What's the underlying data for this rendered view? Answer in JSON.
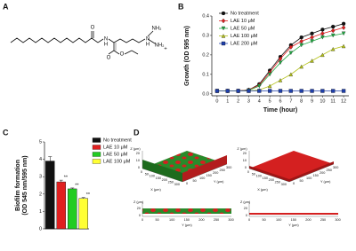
{
  "panels": {
    "A": {
      "label": "A",
      "atoms": [
        "O",
        "N",
        "H",
        "O",
        "O",
        "N",
        "H",
        "NH₂",
        "NH₂",
        "+"
      ]
    },
    "B": {
      "label": "B"
    },
    "C": {
      "label": "C"
    },
    "D": {
      "label": "D",
      "plots": [
        {
          "z_label": "Z (μm)",
          "x_label": "X (μm)",
          "y_label": "Y (μm)",
          "z_ticks": [
            "0",
            "10",
            "20"
          ],
          "x_ticks": [
            "0",
            "50",
            "100",
            "150",
            "200",
            "250",
            "300"
          ],
          "y_ticks": [
            "0",
            "50",
            "100",
            "150",
            "200",
            "250",
            "300"
          ],
          "strip_z_label": "Z (μm)",
          "strip_z_ticks": [
            "0",
            "20"
          ],
          "strip_y_label": "Y (μm)",
          "strip_y_ticks": [
            "0",
            "50",
            "100",
            "150",
            "200",
            "250",
            "300"
          ]
        },
        {
          "z_label": "Z (μm)",
          "x_label": "X (μm)",
          "y_label": "Y (μm)",
          "z_ticks": [
            "0",
            "10",
            "20"
          ],
          "x_ticks": [
            "0",
            "50",
            "100",
            "150",
            "200",
            "250",
            "300"
          ],
          "y_ticks": [
            "0",
            "50",
            "100",
            "150",
            "200",
            "250",
            "300"
          ],
          "strip_z_label": "Z (μm)",
          "strip_z_ticks": [
            "0",
            "20"
          ],
          "strip_y_label": "Y (μm)",
          "strip_y_ticks": [
            "0",
            "50",
            "100",
            "150",
            "200",
            "250",
            "300"
          ]
        }
      ]
    }
  },
  "chart_data": [
    {
      "type": "line",
      "x_label": "Time (hour)",
      "y_label": "Growth (OD 595 nm)",
      "x": [
        0,
        1,
        2,
        3,
        4,
        5,
        6,
        7,
        8,
        9,
        10,
        11,
        12
      ],
      "xlim": [
        -0.5,
        12.5
      ],
      "xticks": [
        0,
        1,
        2,
        3,
        4,
        5,
        6,
        7,
        8,
        9,
        10,
        11,
        12
      ],
      "ylim": [
        -0.01,
        0.4
      ],
      "yticks": [
        {
          "value": 0,
          "label": "0.0"
        },
        {
          "value": 0.1,
          "label": "0.1"
        },
        {
          "value": 0.2,
          "label": "0.2"
        },
        {
          "value": 0.3,
          "label": "0.3"
        },
        {
          "value": 0.4,
          "label": "0.4"
        }
      ],
      "series": [
        {
          "name": "No treatment",
          "color": "#111111",
          "marker": "circle",
          "values": [
            0.015,
            0.015,
            0.015,
            0.02,
            0.05,
            0.12,
            0.19,
            0.25,
            0.29,
            0.31,
            0.33,
            0.345,
            0.36
          ]
        },
        {
          "name": "LAE 10 μM",
          "color": "#e02020",
          "marker": "diamond",
          "values": [
            0.015,
            0.015,
            0.015,
            0.02,
            0.045,
            0.11,
            0.18,
            0.24,
            0.27,
            0.29,
            0.31,
            0.325,
            0.34
          ]
        },
        {
          "name": "LAE 50 μM",
          "color": "#22aa44",
          "marker": "triangle-down",
          "values": [
            0.015,
            0.015,
            0.015,
            0.018,
            0.04,
            0.1,
            0.16,
            0.21,
            0.25,
            0.27,
            0.29,
            0.3,
            0.31
          ]
        },
        {
          "name": "LAE 100 μM",
          "color": "#b5c21a",
          "marker": "triangle-up",
          "values": [
            0.015,
            0.015,
            0.015,
            0.015,
            0.02,
            0.04,
            0.07,
            0.1,
            0.14,
            0.17,
            0.2,
            0.23,
            0.245
          ]
        },
        {
          "name": "LAE 200 μM",
          "color": "#1f3faa",
          "marker": "square",
          "values": [
            0.015,
            0.015,
            0.015,
            0.015,
            0.015,
            0.015,
            0.015,
            0.015,
            0.015,
            0.015,
            0.015,
            0.015,
            0.015
          ]
        }
      ]
    },
    {
      "type": "bar",
      "y_label": [
        "Biofilm formation",
        "(OD 545 nm/595 nm)"
      ],
      "categories": [
        "No treatment",
        "LAE 10 μM",
        "LAE 50 μM",
        "LAE 100 μM"
      ],
      "values": [
        3.9,
        2.7,
        2.3,
        1.75
      ],
      "errors": [
        0.25,
        0.1,
        0.05,
        0.05
      ],
      "annotations": [
        null,
        "**",
        "**",
        "**"
      ],
      "colors": [
        "#111111",
        "#e02020",
        "#22cc22",
        "#ffff33"
      ],
      "ylim": [
        0,
        5
      ],
      "yticks": [
        0,
        1,
        2,
        3,
        4,
        5
      ]
    }
  ]
}
